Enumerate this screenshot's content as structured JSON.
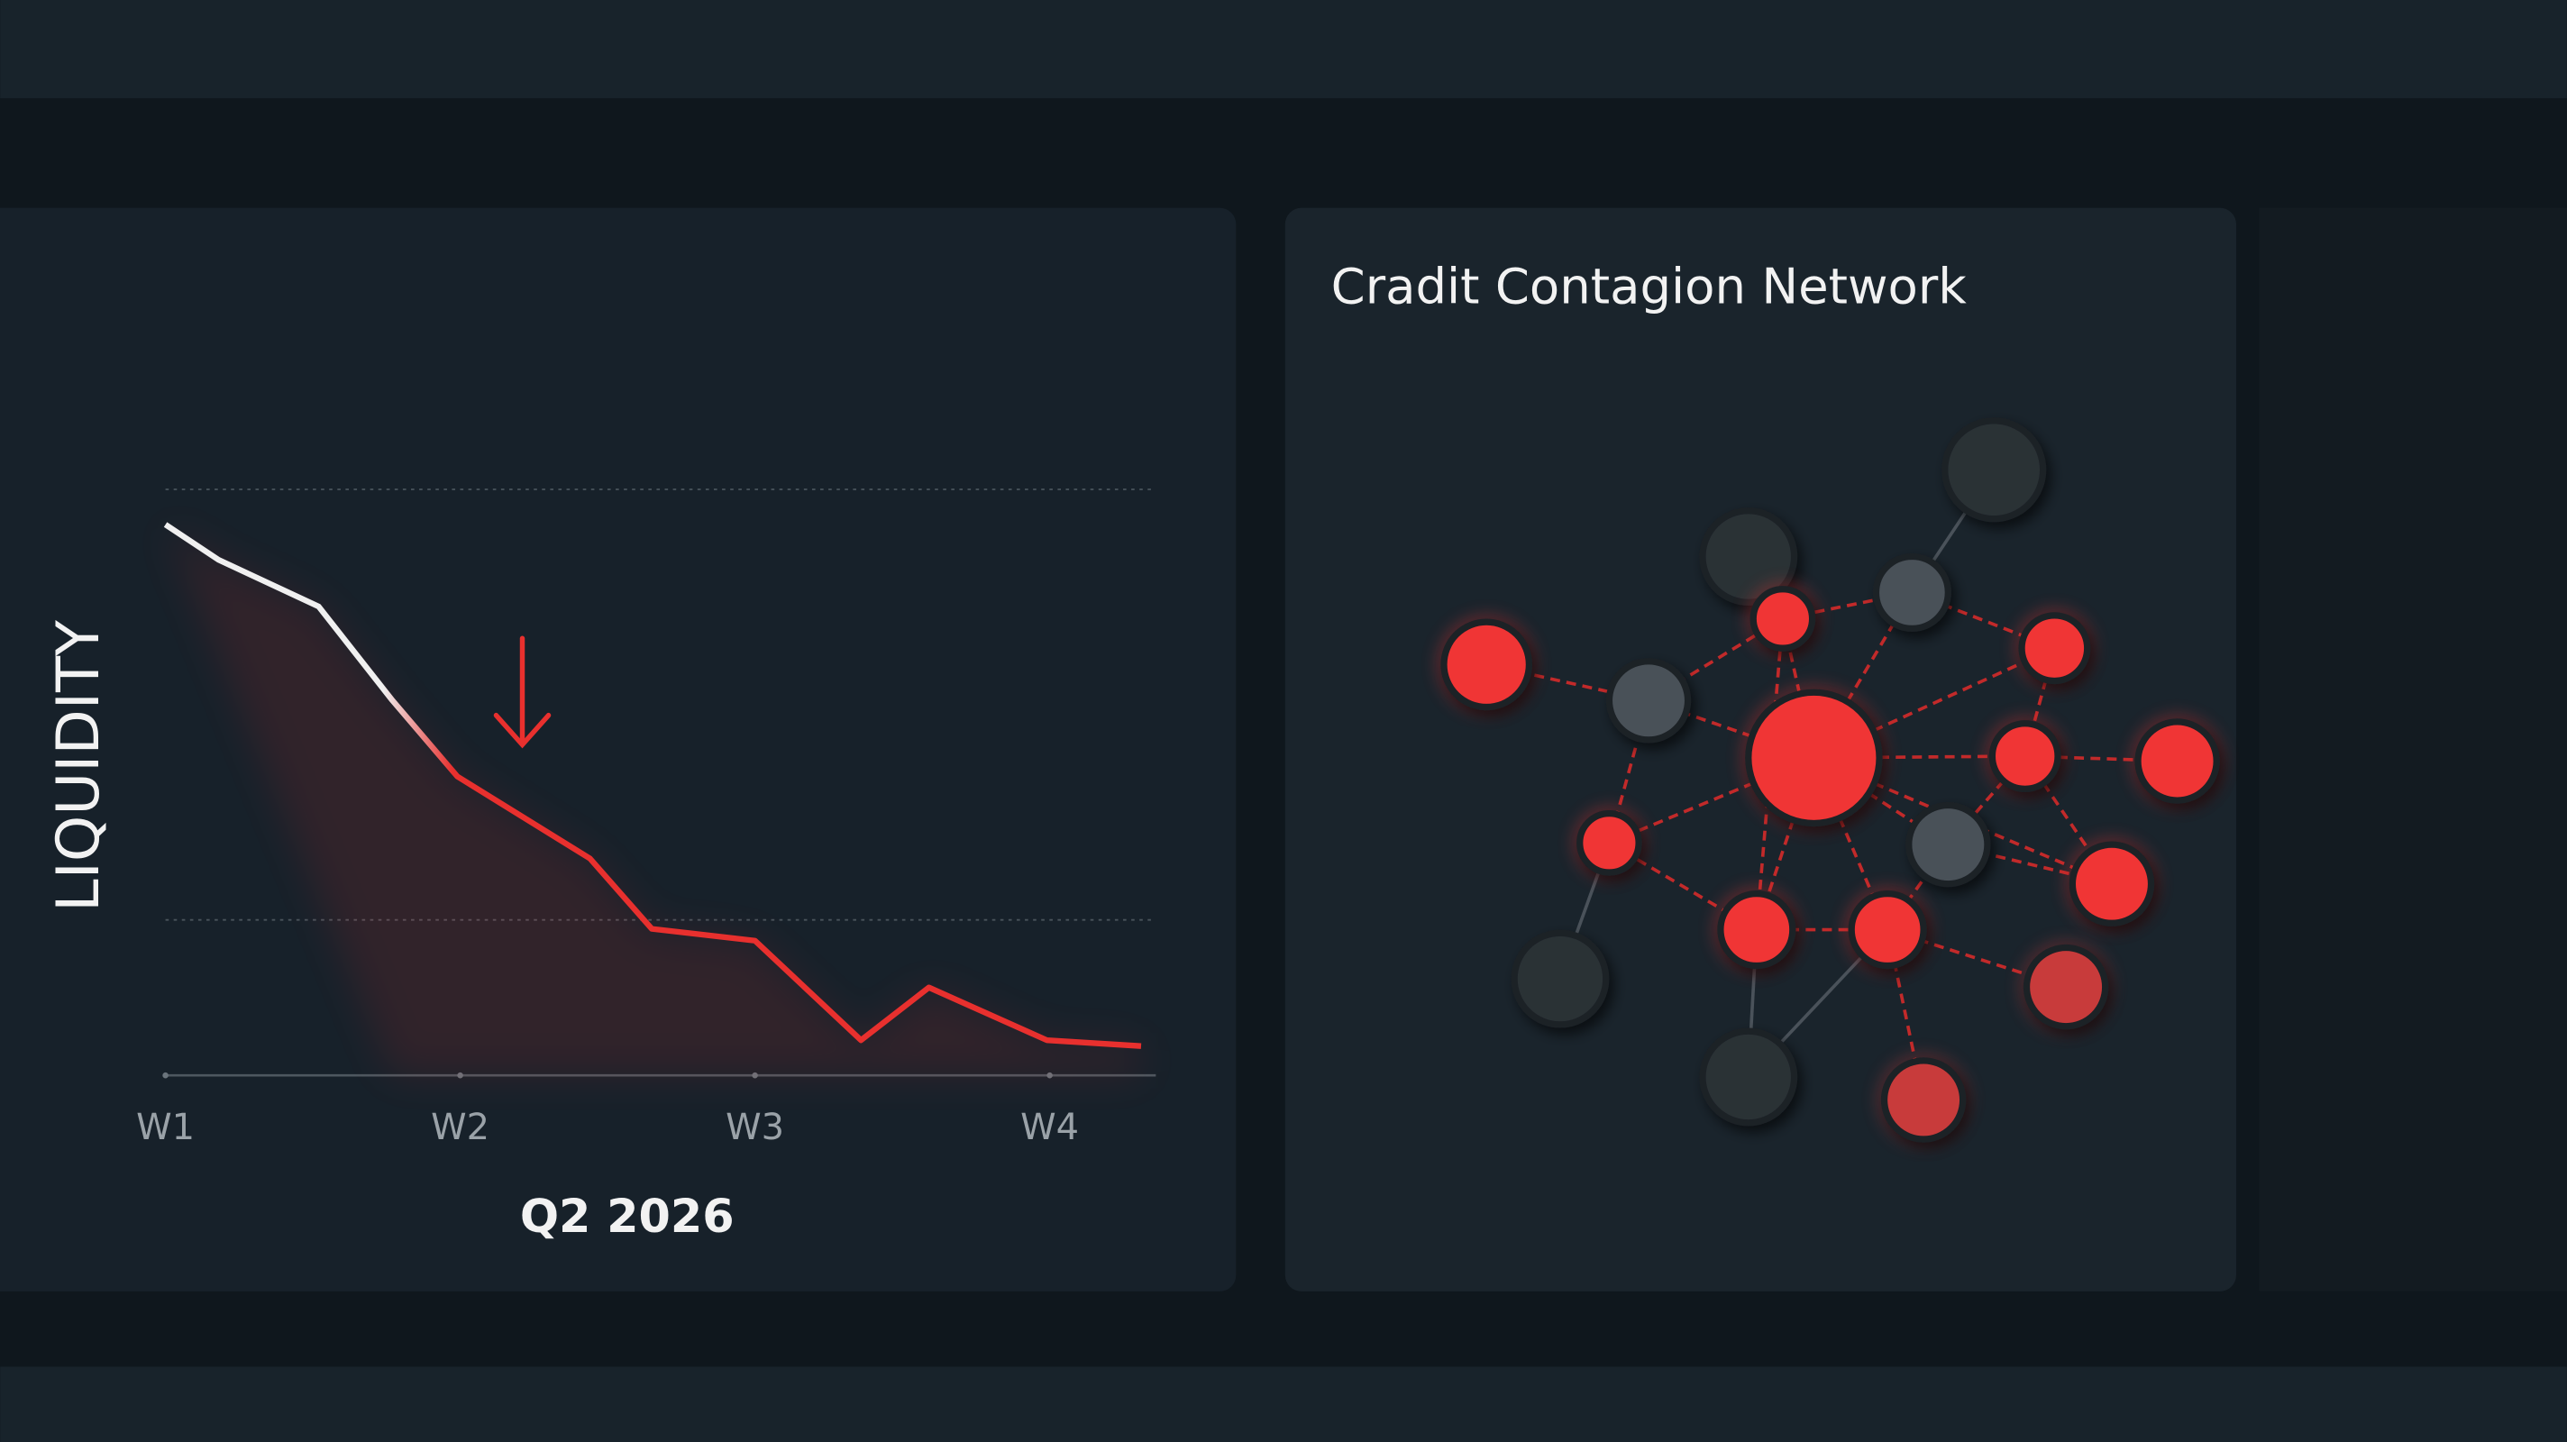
{
  "chart_data": {
    "type": "line",
    "y_label": "LIQUIDITY",
    "x_label": "Q2 2026",
    "x": [
      1,
      1.18,
      1.52,
      1.77,
      1.99,
      2.44,
      2.65,
      3.0,
      3.36,
      3.59,
      3.99,
      4.31
    ],
    "values": [
      94,
      88,
      80,
      64,
      51,
      37,
      25,
      23,
      6,
      15,
      6,
      5
    ],
    "start_color": "#f0f0f0",
    "color": "#e8302e",
    "xlim": [
      1,
      4.36
    ],
    "ylim": [
      0,
      100
    ],
    "xticks": [
      {
        "value": 1,
        "label": "W1"
      },
      {
        "value": 2,
        "label": "W2"
      },
      {
        "value": 3,
        "label": "W3"
      },
      {
        "value": 4,
        "label": "W4"
      }
    ]
  },
  "network": {
    "title": "Cradit Contagion Network"
  }
}
